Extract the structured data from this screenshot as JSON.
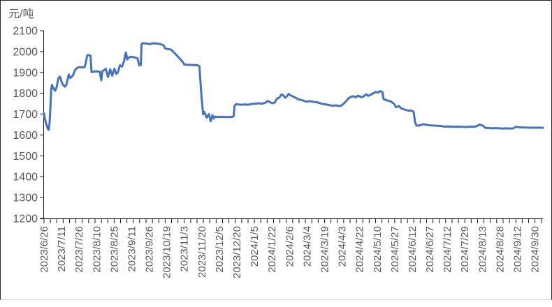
{
  "frame": {
    "background": "#ffffff",
    "outer_border_color": "#262626",
    "bottom_border_color": "#d9d9d9"
  },
  "chart_data": {
    "type": "line",
    "title": "",
    "ylabel": "元/吨",
    "xlabel": "",
    "grid": false,
    "legend_position": "none",
    "line_color": "#4472C4",
    "line_width": 3,
    "axis_color": "#1a1a1a",
    "tick_label_color": "#595959",
    "ylim": [
      1200,
      2100
    ],
    "y_tick_step": 100,
    "y_tick_labels": [
      "2100",
      "2000",
      "1900",
      "1800",
      "1700",
      "1600",
      "1500",
      "1400",
      "1300",
      "1200"
    ],
    "x_tick_labels": [
      "2023/6/26",
      "2023/7/11",
      "2023/7/26",
      "2023/8/10",
      "2023/8/25",
      "2023/9/11",
      "2023/9/26",
      "2023/10/19",
      "2023/11/3",
      "2023/11/20",
      "2023/12/5",
      "2023/12/20",
      "2024/1/5",
      "2024/1/22",
      "2024/2/6",
      "2024/3/4",
      "2024/3/19",
      "2024/4/3",
      "2024/4/22",
      "2024/5/10",
      "2024/5/27",
      "2024/6/12",
      "2024/6/27",
      "2024/7/12",
      "2024/7/29",
      "2024/8/13",
      "2024/8/28",
      "2024/9/12",
      "2024/9/30"
    ],
    "x_label_interval": 11,
    "x_minor_tick_interval": 4,
    "x_index_max": 313,
    "points": [
      [
        0,
        1705
      ],
      [
        0.5,
        1680
      ],
      [
        1.5,
        1650
      ],
      [
        2.5,
        1628
      ],
      [
        3,
        1625
      ],
      [
        3.5,
        1660
      ],
      [
        4,
        1730
      ],
      [
        4.5,
        1820
      ],
      [
        5,
        1840
      ],
      [
        6,
        1822
      ],
      [
        7,
        1812
      ],
      [
        8,
        1832
      ],
      [
        9,
        1872
      ],
      [
        10,
        1880
      ],
      [
        11.5,
        1845
      ],
      [
        13,
        1832
      ],
      [
        14,
        1840
      ],
      [
        15.5,
        1890
      ],
      [
        16.5,
        1873
      ],
      [
        18,
        1884
      ],
      [
        19.5,
        1912
      ],
      [
        21,
        1923
      ],
      [
        22.5,
        1925
      ],
      [
        24,
        1924
      ],
      [
        25.5,
        1926
      ],
      [
        26.3,
        1950
      ],
      [
        27,
        1979
      ],
      [
        27.6,
        1984
      ],
      [
        28.5,
        1982
      ],
      [
        29.2,
        1979
      ],
      [
        29.8,
        1902
      ],
      [
        31,
        1903
      ],
      [
        33,
        1905
      ],
      [
        35,
        1903
      ],
      [
        35.9,
        1862
      ],
      [
        36.6,
        1906
      ],
      [
        38,
        1912
      ],
      [
        38.8,
        1917
      ],
      [
        40.1,
        1878
      ],
      [
        41.5,
        1915
      ],
      [
        42.8,
        1884
      ],
      [
        44.1,
        1917
      ],
      [
        45.4,
        1893
      ],
      [
        46.3,
        1900
      ],
      [
        47.6,
        1934
      ],
      [
        48.9,
        1928
      ],
      [
        50.3,
        1955
      ],
      [
        50.9,
        1984
      ],
      [
        51.4,
        1995
      ],
      [
        52.2,
        1962
      ],
      [
        53.5,
        1973
      ],
      [
        55,
        1975
      ],
      [
        56.9,
        1972
      ],
      [
        58.6,
        1968
      ],
      [
        59.8,
        1933
      ],
      [
        60.7,
        1936
      ],
      [
        61.2,
        2035
      ],
      [
        62,
        2040
      ],
      [
        64.5,
        2038
      ],
      [
        66.5,
        2036
      ],
      [
        69,
        2040
      ],
      [
        71,
        2038
      ],
      [
        73,
        2036
      ],
      [
        75,
        2030
      ],
      [
        76,
        2015
      ],
      [
        77.5,
        2012
      ],
      [
        79.5,
        2010
      ],
      [
        81,
        2000
      ],
      [
        83,
        1984
      ],
      [
        85,
        1968
      ],
      [
        87,
        1950
      ],
      [
        88,
        1938
      ],
      [
        90,
        1936
      ],
      [
        92,
        1936
      ],
      [
        94.5,
        1935
      ],
      [
        96.5,
        1934
      ],
      [
        97.5,
        1930
      ],
      [
        98,
        1870
      ],
      [
        98.6,
        1806
      ],
      [
        99.2,
        1750
      ],
      [
        99.8,
        1700
      ],
      [
        100.5,
        1711
      ],
      [
        102,
        1683
      ],
      [
        103.5,
        1700
      ],
      [
        104.5,
        1666
      ],
      [
        105.7,
        1695
      ],
      [
        106.4,
        1678
      ],
      [
        107.2,
        1688
      ],
      [
        109.3,
        1686
      ],
      [
        111.5,
        1687
      ],
      [
        113.8,
        1686
      ],
      [
        116,
        1686
      ],
      [
        118.2,
        1687
      ],
      [
        119,
        1690
      ],
      [
        119.5,
        1739
      ],
      [
        120.4,
        1748
      ],
      [
        122,
        1746
      ],
      [
        124,
        1745
      ],
      [
        126,
        1746
      ],
      [
        128,
        1745
      ],
      [
        130,
        1748
      ],
      [
        132,
        1750
      ],
      [
        134.5,
        1752
      ],
      [
        137,
        1750
      ],
      [
        139,
        1755
      ],
      [
        140.2,
        1763
      ],
      [
        141.6,
        1758
      ],
      [
        143,
        1752
      ],
      [
        144.7,
        1755
      ],
      [
        146,
        1772
      ],
      [
        147.7,
        1780
      ],
      [
        149.1,
        1795
      ],
      [
        150.4,
        1788
      ],
      [
        151.3,
        1778
      ],
      [
        152.6,
        1788
      ],
      [
        153.5,
        1797
      ],
      [
        154.8,
        1790
      ],
      [
        156.6,
        1783
      ],
      [
        157.9,
        1778
      ],
      [
        159.2,
        1772
      ],
      [
        161,
        1768
      ],
      [
        162.3,
        1766
      ],
      [
        164.5,
        1760
      ],
      [
        166.7,
        1762
      ],
      [
        168.9,
        1759
      ],
      [
        171.1,
        1757
      ],
      [
        174.2,
        1750
      ],
      [
        176.4,
        1747
      ],
      [
        178.6,
        1744
      ],
      [
        180.8,
        1740
      ],
      [
        183,
        1742
      ],
      [
        185.2,
        1739
      ],
      [
        186.5,
        1741
      ],
      [
        188,
        1750
      ],
      [
        189.5,
        1762
      ],
      [
        191,
        1775
      ],
      [
        192.5,
        1783
      ],
      [
        194,
        1786
      ],
      [
        195.5,
        1780
      ],
      [
        197,
        1789
      ],
      [
        199,
        1781
      ],
      [
        200.5,
        1785
      ],
      [
        202,
        1795
      ],
      [
        203.5,
        1788
      ],
      [
        205,
        1793
      ],
      [
        206.5,
        1800
      ],
      [
        208,
        1806
      ],
      [
        209.5,
        1804
      ],
      [
        211,
        1810
      ],
      [
        212.3,
        1806
      ],
      [
        213,
        1772
      ],
      [
        215.2,
        1766
      ],
      [
        217.4,
        1761
      ],
      [
        219.6,
        1750
      ],
      [
        220.9,
        1733
      ],
      [
        222.7,
        1739
      ],
      [
        224,
        1728
      ],
      [
        226.2,
        1722
      ],
      [
        228.4,
        1717
      ],
      [
        230.6,
        1717
      ],
      [
        231.9,
        1711
      ],
      [
        232.8,
        1660
      ],
      [
        233.7,
        1645
      ],
      [
        235.9,
        1646
      ],
      [
        238.1,
        1652
      ],
      [
        240.3,
        1648
      ],
      [
        242.5,
        1646
      ],
      [
        244.7,
        1645
      ],
      [
        246.9,
        1644
      ],
      [
        249.1,
        1643
      ],
      [
        251.3,
        1640
      ],
      [
        253.5,
        1641
      ],
      [
        255.7,
        1640
      ],
      [
        257.9,
        1639
      ],
      [
        260.1,
        1640
      ],
      [
        262.3,
        1639
      ],
      [
        264.5,
        1638
      ],
      [
        266.7,
        1640
      ],
      [
        268.9,
        1639
      ],
      [
        271.1,
        1641
      ],
      [
        273.3,
        1650
      ],
      [
        275.5,
        1644
      ],
      [
        276.9,
        1634
      ],
      [
        279.1,
        1633
      ],
      [
        281.3,
        1632
      ],
      [
        283.5,
        1633
      ],
      [
        285.7,
        1632
      ],
      [
        287.9,
        1631
      ],
      [
        290.1,
        1632
      ],
      [
        292.3,
        1631
      ],
      [
        294.5,
        1632
      ],
      [
        295.8,
        1639
      ],
      [
        298,
        1637
      ],
      [
        300.2,
        1636
      ],
      [
        302.5,
        1636
      ],
      [
        304.7,
        1635
      ],
      [
        306.9,
        1635
      ],
      [
        309.1,
        1635
      ],
      [
        311.3,
        1635
      ],
      [
        313,
        1634
      ]
    ]
  }
}
